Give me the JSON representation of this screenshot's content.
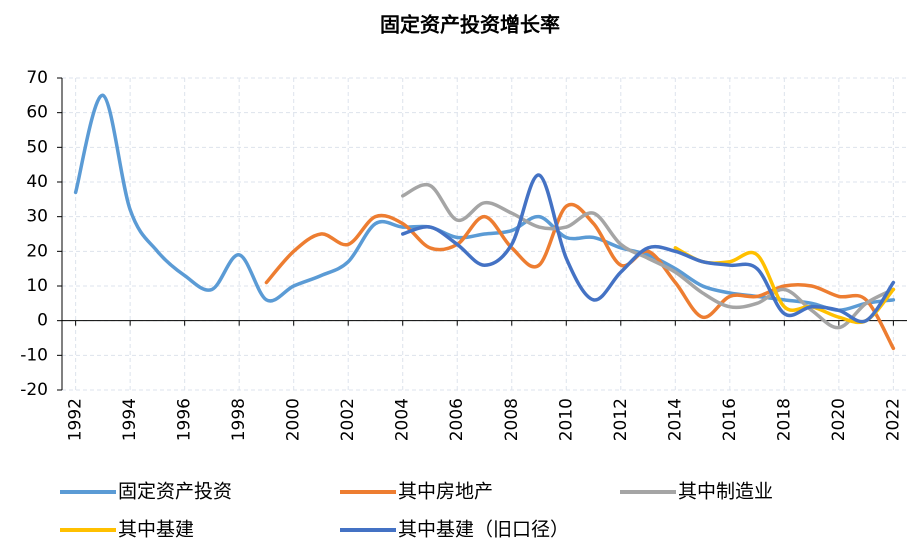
{
  "chart_data": {
    "type": "line",
    "title": "固定资产投资增长率",
    "x": [
      1992,
      1993,
      1994,
      1995,
      1996,
      1997,
      1998,
      1999,
      2000,
      2001,
      2002,
      2003,
      2004,
      2005,
      2006,
      2007,
      2008,
      2009,
      2010,
      2011,
      2012,
      2013,
      2014,
      2015,
      2016,
      2017,
      2018,
      2019,
      2020,
      2021,
      2022
    ],
    "xlim": [
      1991.5,
      2022.5
    ],
    "xticks": [
      1992,
      1994,
      1996,
      1998,
      2000,
      2002,
      2004,
      2006,
      2008,
      2010,
      2012,
      2014,
      2016,
      2018,
      2020,
      2022
    ],
    "ylim": [
      -20,
      70
    ],
    "yticks": [
      -20,
      -10,
      0,
      10,
      20,
      30,
      40,
      50,
      60,
      70
    ],
    "grid": true,
    "legend": "bottom",
    "series": [
      {
        "name": "固定资产投资",
        "color": "#5b9bd5",
        "values": [
          37,
          65,
          32,
          20,
          13,
          9,
          19,
          6,
          10,
          13,
          17,
          28,
          27,
          27,
          24,
          25,
          26,
          30,
          24,
          24,
          21,
          19,
          15,
          10,
          8,
          7,
          6,
          5,
          3,
          5,
          6
        ]
      },
      {
        "name": "其中房地产",
        "color": "#ed7d31",
        "values": [
          null,
          null,
          null,
          null,
          null,
          null,
          null,
          11,
          20,
          25,
          22,
          30,
          28,
          21,
          22,
          30,
          21,
          16,
          33,
          28,
          16,
          20,
          11,
          1,
          7,
          7,
          10,
          10,
          7,
          6,
          -8
        ]
      },
      {
        "name": "其中制造业",
        "color": "#a5a5a5",
        "values": [
          null,
          null,
          null,
          null,
          null,
          null,
          null,
          null,
          null,
          null,
          null,
          null,
          36,
          39,
          29,
          34,
          31,
          27,
          27,
          31,
          22,
          18,
          14,
          8,
          4,
          5,
          9,
          3,
          -2,
          5,
          9
        ]
      },
      {
        "name": "其中基建",
        "color": "#ffc000",
        "values": [
          null,
          null,
          null,
          null,
          null,
          null,
          null,
          null,
          null,
          null,
          null,
          null,
          null,
          null,
          null,
          null,
          null,
          null,
          null,
          null,
          null,
          null,
          21,
          17,
          17,
          19,
          4,
          4,
          1,
          0,
          9
        ]
      },
      {
        "name": "其中基建（旧口径）",
        "color": "#4472c4",
        "values": [
          null,
          null,
          null,
          null,
          null,
          null,
          null,
          null,
          null,
          null,
          null,
          null,
          25,
          27,
          22,
          16,
          22,
          42,
          18,
          6,
          14,
          21,
          20,
          17,
          16,
          15,
          2,
          4,
          3,
          0,
          11
        ]
      }
    ]
  }
}
